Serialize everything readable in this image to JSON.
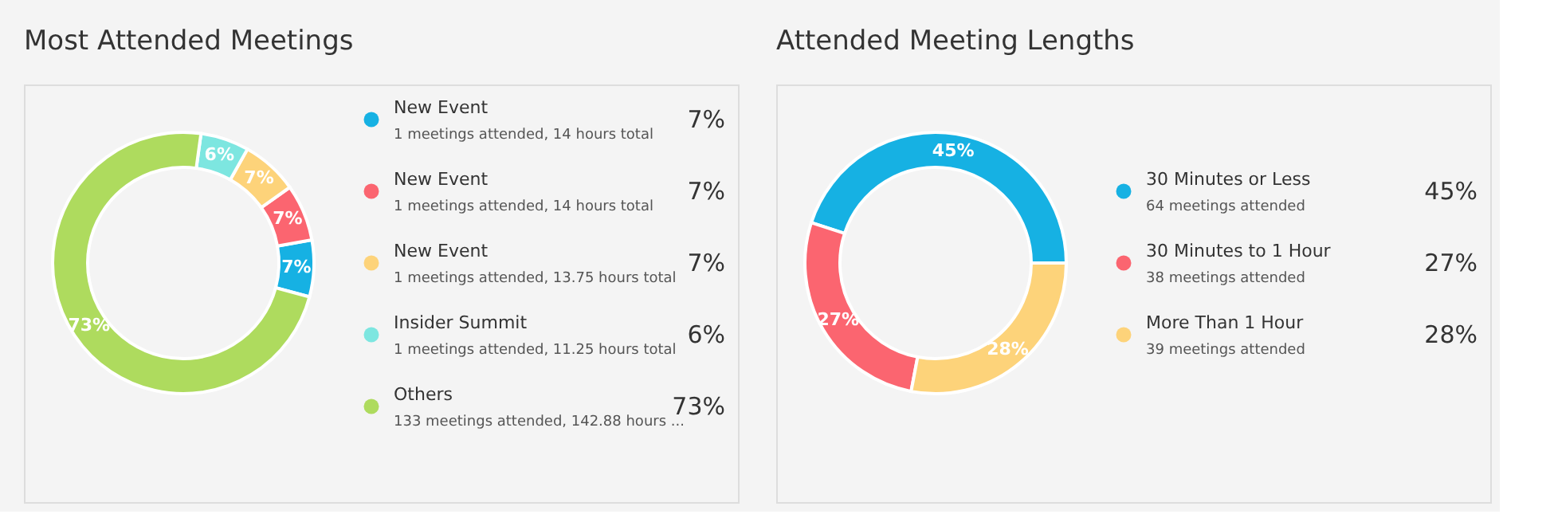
{
  "chart_data": [
    {
      "type": "donut",
      "title": "Most Attended Meetings",
      "legend": "right",
      "categories": [
        "New Event",
        "New Event",
        "New Event",
        "Insider Summit",
        "Others"
      ],
      "values": [
        7,
        7,
        7,
        6,
        73
      ],
      "colors": [
        "#16b1e3",
        "#fb6570",
        "#fdd37a",
        "#7de6e0",
        "#aedb5e"
      ],
      "value_labels": [
        "7%",
        "7%",
        "7%",
        "6%",
        "73%"
      ],
      "annotations": [
        "1 meetings attended, 14 hours total",
        "1 meetings attended, 14 hours total",
        "1 meetings attended, 13.75 hours total",
        "1 meetings attended, 11.25 hours total",
        "133 meetings attended, 142.88 hours ..."
      ]
    },
    {
      "type": "donut",
      "title": "Attended Meeting Lengths",
      "legend": "right",
      "categories": [
        "30 Minutes or Less",
        "30 Minutes to 1 Hour",
        "More Than 1 Hour"
      ],
      "values": [
        45,
        27,
        28
      ],
      "colors": [
        "#16b1e3",
        "#fb6570",
        "#fdd37a"
      ],
      "value_labels": [
        "45%",
        "27%",
        "28%"
      ],
      "annotations": [
        "64 meetings attended",
        "38 meetings attended",
        "39 meetings attended"
      ]
    }
  ]
}
